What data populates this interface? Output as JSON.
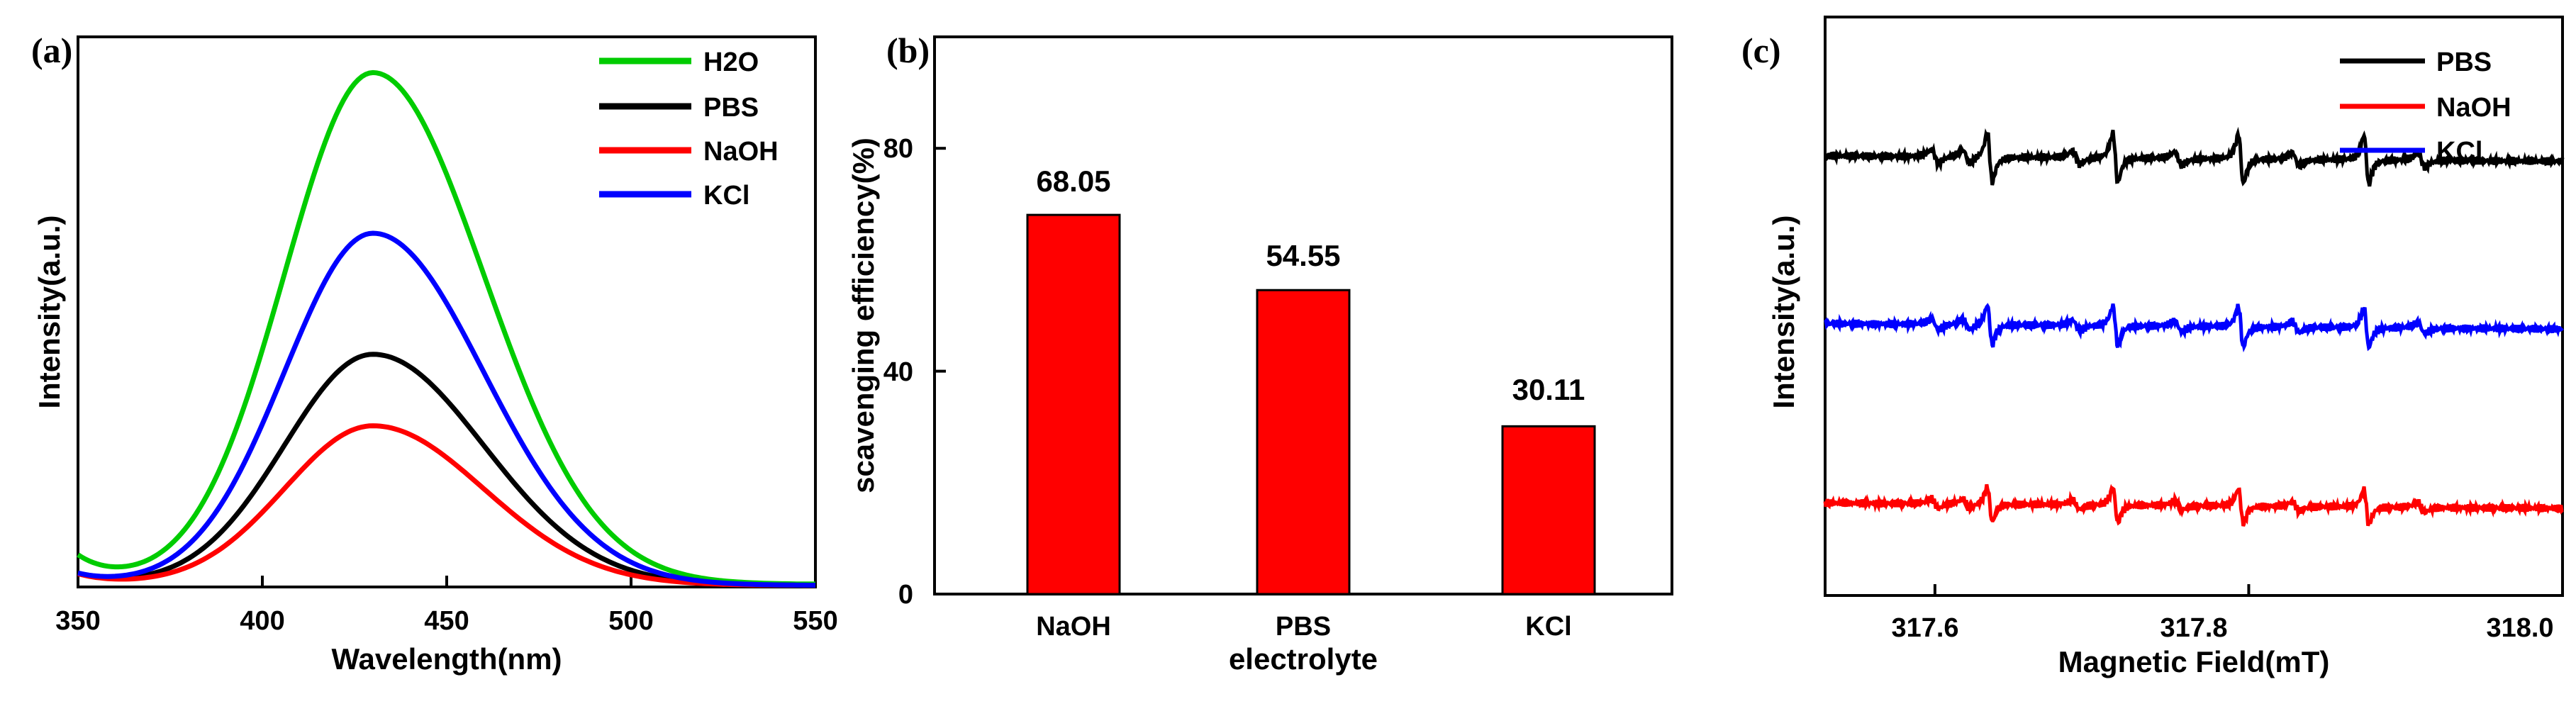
{
  "chart_data": [
    {
      "panel": "(a)",
      "type": "line",
      "xlabel": "Wavelength(nm)",
      "ylabel": "Intensity(a.u.)",
      "xlim": [
        350,
        550
      ],
      "xticks": [
        "350",
        "400",
        "450",
        "500",
        "550"
      ],
      "yticks_labeled": false,
      "legend_position": "top-right",
      "series": [
        {
          "name": "H2O",
          "color": "#00cc00",
          "peak_x": 430,
          "peak": 0.93,
          "baseline_start": 0.05,
          "baseline_end": 0.005
        },
        {
          "name": "PBS",
          "color": "#000000",
          "peak_x": 430,
          "peak": 0.42,
          "baseline_start": 0.02,
          "baseline_end": 0.003
        },
        {
          "name": "NaOH",
          "color": "#ff0000",
          "peak_x": 430,
          "peak": 0.29,
          "baseline_start": 0.02,
          "baseline_end": 0.003
        },
        {
          "name": "KCl",
          "color": "#0000ff",
          "peak_x": 430,
          "peak": 0.64,
          "baseline_start": 0.02,
          "baseline_end": 0.003
        }
      ]
    },
    {
      "panel": "(b)",
      "type": "bar",
      "xlabel": "electrolyte",
      "ylabel": "scavenging efficiency(%)",
      "ylim": [
        0,
        100
      ],
      "yticks": [
        0,
        40,
        80
      ],
      "categories": [
        "NaOH",
        "PBS",
        "KCl"
      ],
      "values": [
        68.05,
        54.55,
        30.11
      ],
      "value_labels": [
        "68.05",
        "54.55",
        "30.11"
      ],
      "bar_color": "#ff0000"
    },
    {
      "panel": "(c)",
      "type": "line",
      "xlabel": "Magnetic Field(mT)",
      "ylabel": "Intensity(a.u.)",
      "xlim": [
        317.53,
        318.0
      ],
      "xticks": [
        317.6,
        317.8,
        318.0
      ],
      "xtick_labels": [
        "317.6",
        "317.8",
        "318.0"
      ],
      "yticks_labeled": false,
      "legend_position": "top-right",
      "series": [
        {
          "name": "PBS",
          "color": "#000000",
          "level": 0.76,
          "amplitude": 1.0
        },
        {
          "name": "NaOH",
          "color": "#ff0000",
          "level": 0.16,
          "amplitude": 0.7
        },
        {
          "name": "KCl",
          "color": "#0000ff",
          "level": 0.47,
          "amplitude": 0.8
        }
      ],
      "major_lines_mT": [
        317.635,
        317.715,
        317.795,
        317.875
      ],
      "minor_lines_mT": [
        317.6,
        317.62,
        317.69,
        317.755,
        317.83,
        317.91
      ]
    }
  ]
}
